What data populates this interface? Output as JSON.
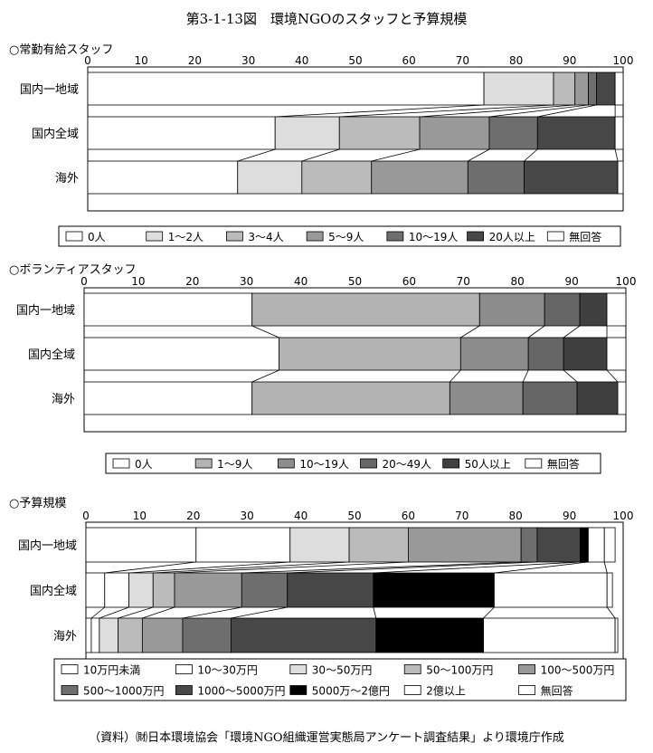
{
  "title": "第3-1-13図　環境NGOのスタッフと予算規模",
  "source": "（資料）㈶日本環境協会「環境NGO組織運営実態局アンケート調査結果」より環境庁作成",
  "chart_data": [
    {
      "type": "bar",
      "stacked": true,
      "orientation": "horizontal",
      "title": "○常勤有給スタッフ",
      "xlim": [
        0,
        100
      ],
      "ticks": [
        "0",
        "10",
        "20",
        "30",
        "40",
        "50",
        "60",
        "70",
        "80",
        "90",
        "100"
      ],
      "categories": [
        "国内一地域",
        "国内全域",
        "海外"
      ],
      "series": [
        {
          "name": "0人",
          "color": "#ffffff",
          "values": [
            74,
            35,
            28
          ]
        },
        {
          "name": "1～2人",
          "color": "#dddddd",
          "values": [
            13,
            12,
            12
          ]
        },
        {
          "name": "3～4人",
          "color": "#bbbbbb",
          "values": [
            4,
            15,
            13
          ]
        },
        {
          "name": "5～9人",
          "color": "#999999",
          "values": [
            2.5,
            13,
            18
          ]
        },
        {
          "name": "10～19人",
          "color": "#6e6e6e",
          "values": [
            1.5,
            9,
            10.5
          ]
        },
        {
          "name": "20人以上",
          "color": "#474747",
          "values": [
            3.5,
            14.5,
            17.5
          ]
        },
        {
          "name": "無回答",
          "color": "#ffffff",
          "values": [
            1.5,
            1.5,
            1
          ]
        }
      ],
      "legend_position": "bottom"
    },
    {
      "type": "bar",
      "stacked": true,
      "orientation": "horizontal",
      "title": "○ボランティアスタッフ",
      "xlim": [
        0,
        100
      ],
      "ticks": [
        "0",
        "10",
        "20",
        "30",
        "40",
        "50",
        "60",
        "70",
        "80",
        "90",
        "100"
      ],
      "categories": [
        "国内一地域",
        "国内全域",
        "海外"
      ],
      "series": [
        {
          "name": "0人",
          "color": "#ffffff",
          "values": [
            31,
            36,
            31
          ]
        },
        {
          "name": "1～9人",
          "color": "#b3b3b3",
          "values": [
            42,
            33.5,
            36.5
          ]
        },
        {
          "name": "10～19人",
          "color": "#8c8c8c",
          "values": [
            12,
            12.5,
            13.5
          ]
        },
        {
          "name": "20～49人",
          "color": "#666666",
          "values": [
            6.5,
            6.5,
            10
          ]
        },
        {
          "name": "50人以上",
          "color": "#404040",
          "values": [
            5,
            8,
            7.5
          ]
        },
        {
          "name": "無回答",
          "color": "#ffffff",
          "values": [
            3.5,
            3.5,
            1.5
          ]
        }
      ],
      "legend_position": "bottom"
    },
    {
      "type": "bar",
      "stacked": true,
      "orientation": "horizontal",
      "title": "○予算規模",
      "xlim": [
        0,
        100
      ],
      "ticks": [
        "0",
        "10",
        "20",
        "30",
        "40",
        "50",
        "60",
        "70",
        "80",
        "90",
        "100"
      ],
      "categories": [
        "国内一地域",
        "国内全域",
        "海外"
      ],
      "series": [
        {
          "name": "10万円未満",
          "color": "#ffffff",
          "values": [
            20.5,
            3.5,
            1
          ]
        },
        {
          "name": "10～30万円",
          "color": "#ffffff",
          "values": [
            17.5,
            4.5,
            1.5
          ]
        },
        {
          "name": "30～50万円",
          "color": "#dddddd",
          "values": [
            11,
            4.5,
            3.5
          ]
        },
        {
          "name": "50～100万円",
          "color": "#bbbbbb",
          "values": [
            11,
            4,
            4.5
          ]
        },
        {
          "name": "100～500万円",
          "color": "#999999",
          "values": [
            21,
            12.5,
            7.5
          ]
        },
        {
          "name": "500～1000万円",
          "color": "#6e6e6e",
          "values": [
            3,
            8.5,
            9
          ]
        },
        {
          "name": "1000～5000万円",
          "color": "#474747",
          "values": [
            8,
            16,
            27
          ]
        },
        {
          "name": "5000万～2億円",
          "color": "#000000",
          "values": [
            1.5,
            22.5,
            20
          ]
        },
        {
          "name": "2億以上",
          "color": "#ffffff",
          "values": [
            3,
            21,
            24.5
          ]
        },
        {
          "name": "無回答",
          "color": "#ffffff",
          "values": [
            2,
            1,
            0.5
          ]
        }
      ],
      "legend_position": "bottom"
    }
  ]
}
